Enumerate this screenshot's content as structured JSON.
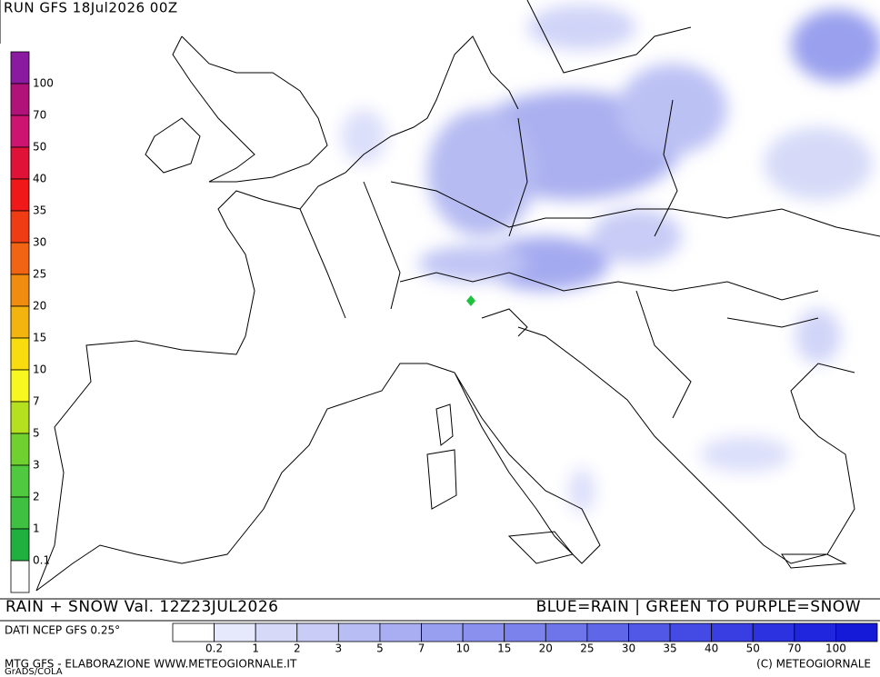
{
  "header": {
    "run": "RUN GFS 18Jul2026 00Z"
  },
  "snow_scale": {
    "labels": [
      "100",
      "70",
      "50",
      "40",
      "35",
      "30",
      "25",
      "20",
      "15",
      "10",
      "7",
      "5",
      "3",
      "2",
      "1",
      "0.1"
    ],
    "colors": [
      "#8a1aa0",
      "#b0127a",
      "#cc1470",
      "#e01238",
      "#f01818",
      "#f03c14",
      "#f06414",
      "#f08c10",
      "#f4b410",
      "#f8dc10",
      "#f8f820",
      "#b4e020",
      "#70d030",
      "#50c840",
      "#40c040",
      "#20b040",
      "#ffffff"
    ]
  },
  "footer": {
    "title": "RAIN + SNOW Val. 12Z23JUL2026",
    "legend_note": "BLUE=RAIN | GREEN TO PURPLE=SNOW",
    "source": "DATI NCEP GFS 0.25°",
    "credit": "MTG GFS - ELABORAZIONE WWW.METEOGIORNALE.IT",
    "copyright": "(C) METEOGIORNALE",
    "software": "GrADS/COLA"
  },
  "rain_scale": {
    "labels": [
      "0.2",
      "1",
      "2",
      "3",
      "5",
      "7",
      "10",
      "15",
      "20",
      "25",
      "30",
      "35",
      "40",
      "50",
      "70",
      "100"
    ],
    "colors": [
      "#ffffff",
      "#e6e8fb",
      "#d6daf8",
      "#c8ccf6",
      "#b8bdf3",
      "#a8aef1",
      "#989ff0",
      "#8a90ee",
      "#7c82ec",
      "#6e74ea",
      "#6066e8",
      "#5258e6",
      "#444ae4",
      "#383ee2",
      "#2c32e0",
      "#2026de",
      "#141ad8"
    ]
  }
}
